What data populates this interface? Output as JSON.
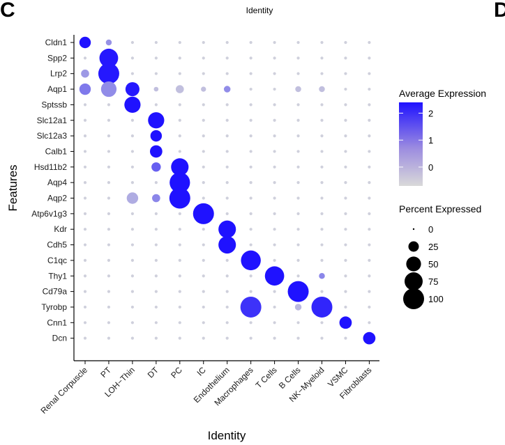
{
  "panel_label": "C",
  "next_panel_label": "D",
  "chart_data": {
    "type": "dotplot",
    "title": "Identity",
    "xlabel": "Identity",
    "ylabel": "Features",
    "categories": [
      "Renal Corpuscle",
      "PT",
      "LOH−Thin",
      "DT",
      "PC",
      "IC",
      "Endothelium",
      "Macrophages",
      "T Cells",
      "B Cells",
      "NK−Myeloid",
      "VSMC",
      "Fibroblasts"
    ],
    "features": [
      "Cldn1",
      "Spp2",
      "Lrp2",
      "Aqp1",
      "Sptssb",
      "Slc12a1",
      "Slc12a3",
      "Calb1",
      "Hsd11b2",
      "Aqp4",
      "Aqp2",
      "Atp6v1g3",
      "Kdr",
      "Cdh5",
      "C1qc",
      "Thy1",
      "Cd79a",
      "Tyrobp",
      "Cnn1",
      "Dcn"
    ],
    "points": [
      {
        "feature": "Cldn1",
        "identity": "Renal Corpuscle",
        "pct": 30,
        "avg": 2.4
      },
      {
        "feature": "Cldn1",
        "identity": "PT",
        "pct": 8,
        "avg": 0.4
      },
      {
        "feature": "Spp2",
        "identity": "PT",
        "pct": 80,
        "avg": 2.3
      },
      {
        "feature": "Lrp2",
        "identity": "Renal Corpuscle",
        "pct": 15,
        "avg": 0.3
      },
      {
        "feature": "Lrp2",
        "identity": "PT",
        "pct": 100,
        "avg": 2.3
      },
      {
        "feature": "Aqp1",
        "identity": "Renal Corpuscle",
        "pct": 30,
        "avg": 0.8
      },
      {
        "feature": "Aqp1",
        "identity": "PT",
        "pct": 55,
        "avg": 0.5
      },
      {
        "feature": "Aqp1",
        "identity": "LOH−Thin",
        "pct": 45,
        "avg": 2.3
      },
      {
        "feature": "Aqp1",
        "identity": "DT",
        "pct": 5,
        "avg": -0.3
      },
      {
        "feature": "Aqp1",
        "identity": "PC",
        "pct": 15,
        "avg": -0.3
      },
      {
        "feature": "Aqp1",
        "identity": "IC",
        "pct": 6,
        "avg": -0.3
      },
      {
        "feature": "Aqp1",
        "identity": "Endothelium",
        "pct": 10,
        "avg": 0.5
      },
      {
        "feature": "Aqp1",
        "identity": "B Cells",
        "pct": 8,
        "avg": -0.3
      },
      {
        "feature": "Aqp1",
        "identity": "NK−Myeloid",
        "pct": 8,
        "avg": -0.3
      },
      {
        "feature": "Sptssb",
        "identity": "LOH−Thin",
        "pct": 60,
        "avg": 2.4
      },
      {
        "feature": "Slc12a1",
        "identity": "DT",
        "pct": 60,
        "avg": 2.4
      },
      {
        "feature": "Slc12a3",
        "identity": "DT",
        "pct": 30,
        "avg": 2.4
      },
      {
        "feature": "Calb1",
        "identity": "DT",
        "pct": 35,
        "avg": 2.4
      },
      {
        "feature": "Hsd11b2",
        "identity": "DT",
        "pct": 20,
        "avg": 1.2
      },
      {
        "feature": "Hsd11b2",
        "identity": "PC",
        "pct": 70,
        "avg": 2.4
      },
      {
        "feature": "Aqp4",
        "identity": "PC",
        "pct": 95,
        "avg": 2.4
      },
      {
        "feature": "Aqp2",
        "identity": "LOH−Thin",
        "pct": 30,
        "avg": 0.0
      },
      {
        "feature": "Aqp2",
        "identity": "DT",
        "pct": 15,
        "avg": 0.6
      },
      {
        "feature": "Aqp2",
        "identity": "PC",
        "pct": 100,
        "avg": 2.4
      },
      {
        "feature": "Atp6v1g3",
        "identity": "IC",
        "pct": 100,
        "avg": 2.4
      },
      {
        "feature": "Kdr",
        "identity": "Endothelium",
        "pct": 70,
        "avg": 2.4
      },
      {
        "feature": "Cdh5",
        "identity": "Endothelium",
        "pct": 70,
        "avg": 2.4
      },
      {
        "feature": "C1qc",
        "identity": "Macrophages",
        "pct": 90,
        "avg": 2.4
      },
      {
        "feature": "Thy1",
        "identity": "T Cells",
        "pct": 85,
        "avg": 2.4
      },
      {
        "feature": "Thy1",
        "identity": "NK−Myeloid",
        "pct": 8,
        "avg": 0.6
      },
      {
        "feature": "Cd79a",
        "identity": "B Cells",
        "pct": 100,
        "avg": 2.4
      },
      {
        "feature": "Tyrobp",
        "identity": "Macrophages",
        "pct": 100,
        "avg": 1.9
      },
      {
        "feature": "Tyrobp",
        "identity": "B Cells",
        "pct": 10,
        "avg": -0.2
      },
      {
        "feature": "Tyrobp",
        "identity": "NK−Myeloid",
        "pct": 100,
        "avg": 2.1
      },
      {
        "feature": "Cnn1",
        "identity": "VSMC",
        "pct": 35,
        "avg": 2.4
      },
      {
        "feature": "Dcn",
        "identity": "Fibroblasts",
        "pct": 35,
        "avg": 2.4
      }
    ],
    "legend_color": {
      "title": "Average Expression",
      "ticks": [
        2,
        1,
        0
      ],
      "range": [
        -0.7,
        2.4
      ],
      "low_color": "#d9d9d9",
      "high_color": "#1f12ff"
    },
    "legend_size": {
      "title": "Percent Expressed",
      "values": [
        0,
        25,
        50,
        75,
        100
      ]
    }
  }
}
